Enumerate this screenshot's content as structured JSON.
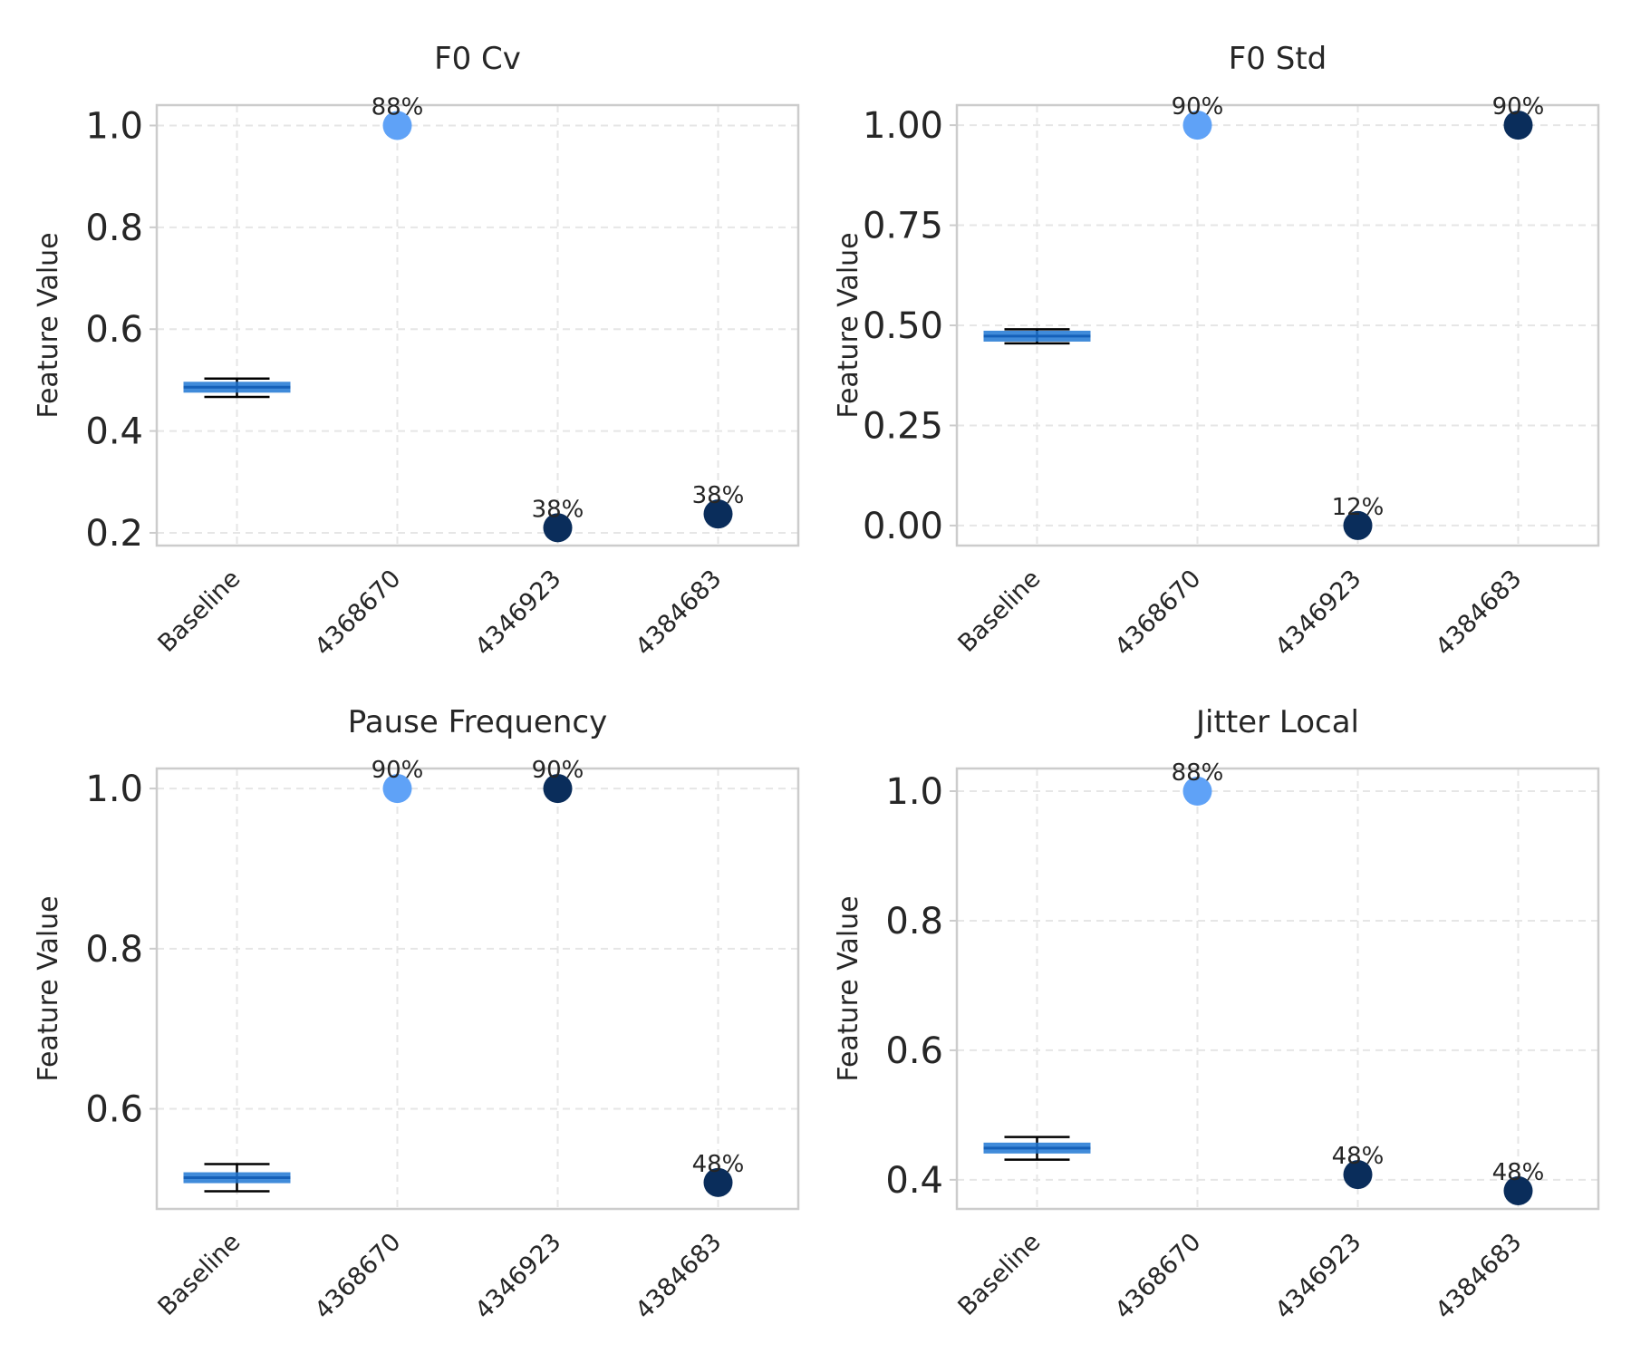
{
  "chart_data": [
    {
      "type": "scatter",
      "title": "F0 Cv",
      "ylabel": "Feature Value",
      "categories": [
        "Baseline",
        "4368670",
        "4346923",
        "4384683"
      ],
      "ylim": [
        0.175,
        1.04
      ],
      "yticks": [
        0.2,
        0.4,
        0.6,
        0.8,
        1.0
      ],
      "ytick_labels": [
        "0.2",
        "0.4",
        "0.6",
        "0.8",
        "1.0"
      ],
      "baseline": {
        "low": 0.467,
        "high": 0.503,
        "median": 0.486
      },
      "points": [
        {
          "category": "4368670",
          "value": 1.0,
          "label": "88%",
          "color": "#5fa2f7"
        },
        {
          "category": "4346923",
          "value": 0.21,
          "label": "38%",
          "color": "#0a2d5b"
        },
        {
          "category": "4384683",
          "value": 0.237,
          "label": "38%",
          "color": "#0a2d5b"
        }
      ],
      "grid": true
    },
    {
      "type": "scatter",
      "title": "F0 Std",
      "ylabel": "Feature Value",
      "categories": [
        "Baseline",
        "4368670",
        "4346923",
        "4384683"
      ],
      "ylim": [
        -0.05,
        1.05
      ],
      "yticks": [
        0.0,
        0.25,
        0.5,
        0.75,
        1.0
      ],
      "ytick_labels": [
        "0.00",
        "0.25",
        "0.50",
        "0.75",
        "1.00"
      ],
      "baseline": {
        "low": 0.455,
        "high": 0.49,
        "median": 0.473
      },
      "points": [
        {
          "category": "4368670",
          "value": 1.0,
          "label": "90%",
          "color": "#5fa2f7"
        },
        {
          "category": "4346923",
          "value": 0.0,
          "label": "12%",
          "color": "#0a2d5b"
        },
        {
          "category": "4384683",
          "value": 1.0,
          "label": "90%",
          "color": "#0a2d5b"
        }
      ],
      "grid": true
    },
    {
      "type": "scatter",
      "title": "Pause Frequency",
      "ylabel": "Feature Value",
      "categories": [
        "Baseline",
        "4368670",
        "4346923",
        "4384683"
      ],
      "ylim": [
        0.475,
        1.025
      ],
      "yticks": [
        0.6,
        0.8,
        1.0
      ],
      "ytick_labels": [
        "0.6",
        "0.8",
        "1.0"
      ],
      "baseline": {
        "low": 0.497,
        "high": 0.531,
        "median": 0.514
      },
      "points": [
        {
          "category": "4368670",
          "value": 1.0,
          "label": "90%",
          "color": "#5fa2f7"
        },
        {
          "category": "4346923",
          "value": 1.0,
          "label": "90%",
          "color": "#0a2d5b"
        },
        {
          "category": "4384683",
          "value": 0.508,
          "label": "48%",
          "color": "#0a2d5b"
        }
      ],
      "grid": true
    },
    {
      "type": "scatter",
      "title": "Jitter Local",
      "ylabel": "Feature Value",
      "categories": [
        "Baseline",
        "4368670",
        "4346923",
        "4384683"
      ],
      "ylim": [
        0.355,
        1.035
      ],
      "yticks": [
        0.4,
        0.6,
        0.8,
        1.0
      ],
      "ytick_labels": [
        "0.4",
        "0.6",
        "0.8",
        "1.0"
      ],
      "baseline": {
        "low": 0.431,
        "high": 0.466,
        "median": 0.449
      },
      "points": [
        {
          "category": "4368670",
          "value": 1.0,
          "label": "88%",
          "color": "#5fa2f7"
        },
        {
          "category": "4346923",
          "value": 0.408,
          "label": "48%",
          "color": "#0a2d5b"
        },
        {
          "category": "4384683",
          "value": 0.383,
          "label": "48%",
          "color": "#0a2d5b"
        }
      ],
      "grid": true
    }
  ],
  "colors": {
    "baseline_box": "#1f77d4",
    "whisker": "#000000",
    "grid": "#e6e6e6",
    "axes": "#cccccc"
  }
}
